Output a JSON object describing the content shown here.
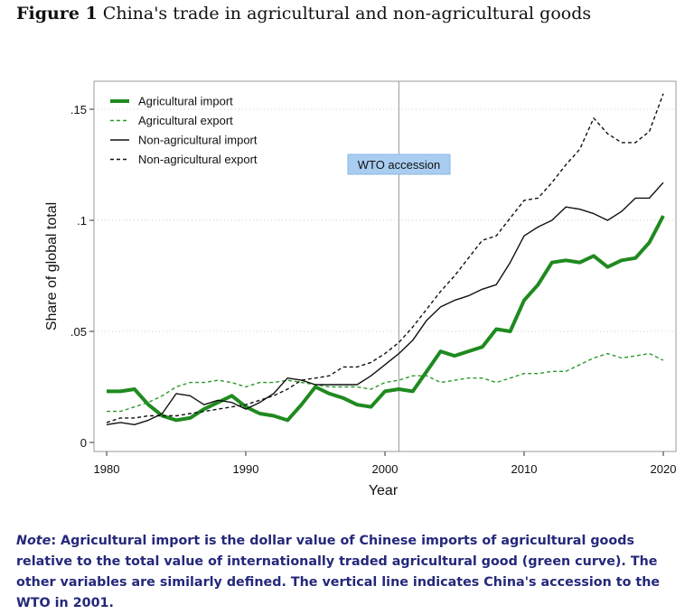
{
  "figure": {
    "label": "Figure 1",
    "title": "China's trade in agricultural and non-agricultural goods"
  },
  "note": {
    "label": "Note",
    "text": ": Agricultural import is the dollar value of Chinese imports of agricultural goods relative to the total value of internationally traded agricultural good (green curve). The other variables are similarly defined. The vertical line indicates China's accession to the WTO in 2001."
  },
  "chart_data": {
    "type": "line",
    "xlabel": "Year",
    "ylabel": "Share of global total",
    "xlim": [
      1980,
      2020
    ],
    "ylim": [
      0,
      0.16
    ],
    "xticks": [
      1980,
      1990,
      2000,
      2010,
      2020
    ],
    "xtick_labels": [
      "1980",
      "1990",
      "2000",
      "2010",
      "2020"
    ],
    "yticks": [
      0,
      0.05,
      0.1,
      0.15
    ],
    "ytick_labels": [
      "0",
      ".05",
      ".1",
      ".15"
    ],
    "grid": true,
    "legend_position": "top-left",
    "annotation": {
      "text": "WTO accession",
      "x": 2001
    },
    "x": [
      1980,
      1981,
      1982,
      1983,
      1984,
      1985,
      1986,
      1987,
      1988,
      1989,
      1990,
      1991,
      1992,
      1993,
      1994,
      1995,
      1996,
      1997,
      1998,
      1999,
      2000,
      2001,
      2002,
      2003,
      2004,
      2005,
      2006,
      2007,
      2008,
      2009,
      2010,
      2011,
      2012,
      2013,
      2014,
      2015,
      2016,
      2017,
      2018,
      2019,
      2020
    ],
    "series": [
      {
        "name": "Agricultural import",
        "color": "#1f8a1f",
        "style": "solid",
        "width": 4,
        "values": [
          0.023,
          0.023,
          0.024,
          0.017,
          0.012,
          0.01,
          0.011,
          0.015,
          0.018,
          0.021,
          0.016,
          0.013,
          0.012,
          0.01,
          0.017,
          0.025,
          0.022,
          0.02,
          0.017,
          0.016,
          0.023,
          0.024,
          0.023,
          0.032,
          0.041,
          0.039,
          0.041,
          0.043,
          0.051,
          0.05,
          0.064,
          0.071,
          0.081,
          0.082,
          0.081,
          0.084,
          0.079,
          0.082,
          0.083,
          0.09,
          0.102
        ]
      },
      {
        "name": "Agricultural export",
        "color": "#2e9a2e",
        "style": "dashed",
        "width": 1.4,
        "values": [
          0.014,
          0.014,
          0.016,
          0.018,
          0.021,
          0.025,
          0.027,
          0.027,
          0.028,
          0.027,
          0.025,
          0.027,
          0.027,
          0.028,
          0.027,
          0.026,
          0.025,
          0.025,
          0.025,
          0.024,
          0.027,
          0.028,
          0.03,
          0.03,
          0.027,
          0.028,
          0.029,
          0.029,
          0.027,
          0.029,
          0.031,
          0.031,
          0.032,
          0.032,
          0.035,
          0.038,
          0.04,
          0.038,
          0.039,
          0.04,
          0.037
        ]
      },
      {
        "name": "Non-agricultural import",
        "color": "#111111",
        "style": "solid",
        "width": 1.4,
        "values": [
          0.008,
          0.009,
          0.008,
          0.01,
          0.013,
          0.022,
          0.021,
          0.017,
          0.019,
          0.018,
          0.015,
          0.018,
          0.022,
          0.029,
          0.028,
          0.026,
          0.026,
          0.026,
          0.026,
          0.03,
          0.035,
          0.04,
          0.046,
          0.055,
          0.061,
          0.064,
          0.066,
          0.069,
          0.071,
          0.081,
          0.093,
          0.097,
          0.1,
          0.106,
          0.105,
          0.103,
          0.1,
          0.104,
          0.11,
          0.11,
          0.117
        ]
      },
      {
        "name": "Non-agricultural export",
        "color": "#111111",
        "style": "dashed",
        "width": 1.4,
        "values": [
          0.009,
          0.011,
          0.011,
          0.012,
          0.012,
          0.012,
          0.013,
          0.014,
          0.015,
          0.016,
          0.017,
          0.019,
          0.021,
          0.024,
          0.028,
          0.029,
          0.03,
          0.034,
          0.034,
          0.036,
          0.04,
          0.045,
          0.052,
          0.06,
          0.068,
          0.075,
          0.083,
          0.091,
          0.093,
          0.101,
          0.109,
          0.11,
          0.117,
          0.125,
          0.132,
          0.146,
          0.139,
          0.135,
          0.135,
          0.14,
          0.157
        ]
      }
    ]
  }
}
